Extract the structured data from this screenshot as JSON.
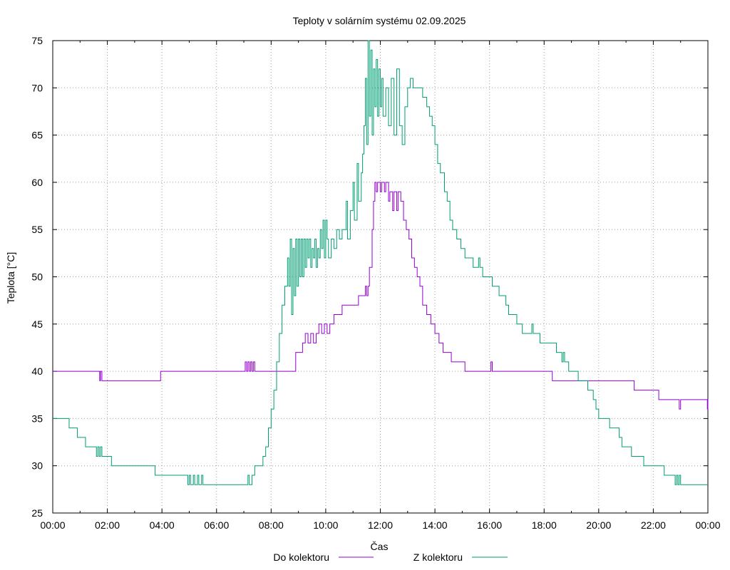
{
  "chart_data": {
    "type": "line",
    "title": "Teploty v solárním systému 02.09.2025",
    "xlabel": "Čas",
    "ylabel": "Teplota [°C]",
    "xlim": [
      0,
      24
    ],
    "ylim": [
      25,
      75
    ],
    "grid": true,
    "legend_position": "bottom",
    "x_ticks": [
      {
        "value": 0,
        "label": "00:00"
      },
      {
        "value": 2,
        "label": "02:00"
      },
      {
        "value": 4,
        "label": "04:00"
      },
      {
        "value": 6,
        "label": "06:00"
      },
      {
        "value": 8,
        "label": "08:00"
      },
      {
        "value": 10,
        "label": "10:00"
      },
      {
        "value": 12,
        "label": "12:00"
      },
      {
        "value": 14,
        "label": "14:00"
      },
      {
        "value": 16,
        "label": "16:00"
      },
      {
        "value": 18,
        "label": "18:00"
      },
      {
        "value": 20,
        "label": "20:00"
      },
      {
        "value": 22,
        "label": "22:00"
      },
      {
        "value": 24,
        "label": "00:00"
      }
    ],
    "y_ticks": [
      {
        "value": 25,
        "label": "25"
      },
      {
        "value": 30,
        "label": "30"
      },
      {
        "value": 35,
        "label": "35"
      },
      {
        "value": 40,
        "label": "40"
      },
      {
        "value": 45,
        "label": "45"
      },
      {
        "value": 50,
        "label": "50"
      },
      {
        "value": 55,
        "label": "55"
      },
      {
        "value": 60,
        "label": "60"
      },
      {
        "value": 65,
        "label": "65"
      },
      {
        "value": 70,
        "label": "70"
      },
      {
        "value": 75,
        "label": "75"
      }
    ],
    "series": [
      {
        "name": "Do kolektoru",
        "color": "#9400d3",
        "points": [
          [
            0.0,
            40
          ],
          [
            1.7,
            40
          ],
          [
            1.72,
            39
          ],
          [
            1.75,
            40
          ],
          [
            1.8,
            39
          ],
          [
            3.9,
            39
          ],
          [
            3.95,
            40
          ],
          [
            7.0,
            40
          ],
          [
            7.05,
            41
          ],
          [
            7.1,
            40
          ],
          [
            7.15,
            41
          ],
          [
            7.2,
            40
          ],
          [
            7.25,
            41
          ],
          [
            7.3,
            40
          ],
          [
            7.35,
            41
          ],
          [
            7.4,
            40
          ],
          [
            8.8,
            40
          ],
          [
            8.9,
            42
          ],
          [
            9.1,
            42
          ],
          [
            9.15,
            43
          ],
          [
            9.25,
            44
          ],
          [
            9.35,
            43
          ],
          [
            9.45,
            44
          ],
          [
            9.55,
            43
          ],
          [
            9.65,
            44
          ],
          [
            9.75,
            45
          ],
          [
            9.85,
            44
          ],
          [
            9.95,
            45
          ],
          [
            10.05,
            44
          ],
          [
            10.15,
            45
          ],
          [
            10.3,
            46
          ],
          [
            10.5,
            46
          ],
          [
            10.6,
            47
          ],
          [
            11.1,
            47
          ],
          [
            11.2,
            48
          ],
          [
            11.4,
            48
          ],
          [
            11.45,
            49
          ],
          [
            11.5,
            48
          ],
          [
            11.55,
            49
          ],
          [
            11.6,
            51
          ],
          [
            11.7,
            55
          ],
          [
            11.75,
            58
          ],
          [
            11.8,
            60
          ],
          [
            11.85,
            59
          ],
          [
            11.9,
            60
          ],
          [
            12.0,
            59
          ],
          [
            12.05,
            60
          ],
          [
            12.15,
            59
          ],
          [
            12.2,
            60
          ],
          [
            12.3,
            58
          ],
          [
            12.35,
            59
          ],
          [
            12.45,
            57
          ],
          [
            12.5,
            59
          ],
          [
            12.6,
            57
          ],
          [
            12.65,
            59
          ],
          [
            12.75,
            58
          ],
          [
            12.85,
            56
          ],
          [
            12.95,
            55
          ],
          [
            13.05,
            54
          ],
          [
            13.15,
            52
          ],
          [
            13.25,
            51
          ],
          [
            13.35,
            50
          ],
          [
            13.45,
            49
          ],
          [
            13.55,
            47
          ],
          [
            13.7,
            46
          ],
          [
            13.85,
            45
          ],
          [
            14.0,
            44
          ],
          [
            14.15,
            43
          ],
          [
            14.3,
            42
          ],
          [
            14.45,
            42
          ],
          [
            14.6,
            41
          ],
          [
            15.0,
            41
          ],
          [
            15.1,
            40
          ],
          [
            16.0,
            40
          ],
          [
            16.05,
            41
          ],
          [
            16.1,
            40
          ],
          [
            18.2,
            40
          ],
          [
            18.3,
            39
          ],
          [
            21.2,
            39
          ],
          [
            21.3,
            38
          ],
          [
            22.1,
            38
          ],
          [
            22.2,
            37
          ],
          [
            22.9,
            37
          ],
          [
            22.95,
            36
          ],
          [
            23.0,
            37
          ],
          [
            23.95,
            37
          ],
          [
            23.98,
            36
          ],
          [
            24.0,
            37
          ]
        ]
      },
      {
        "name": "Z kolektoru",
        "color": "#009e73",
        "points": [
          [
            0.0,
            35
          ],
          [
            0.55,
            35
          ],
          [
            0.6,
            34
          ],
          [
            0.85,
            34
          ],
          [
            0.9,
            33
          ],
          [
            1.15,
            33
          ],
          [
            1.2,
            32
          ],
          [
            1.55,
            32
          ],
          [
            1.6,
            31
          ],
          [
            1.65,
            32
          ],
          [
            1.7,
            31
          ],
          [
            1.75,
            32
          ],
          [
            1.8,
            31
          ],
          [
            2.1,
            31
          ],
          [
            2.15,
            30
          ],
          [
            3.7,
            30
          ],
          [
            3.75,
            29
          ],
          [
            4.9,
            29
          ],
          [
            4.95,
            28
          ],
          [
            5.0,
            29
          ],
          [
            5.05,
            28
          ],
          [
            5.15,
            29
          ],
          [
            5.2,
            28
          ],
          [
            5.3,
            29
          ],
          [
            5.35,
            28
          ],
          [
            5.45,
            29
          ],
          [
            5.5,
            28
          ],
          [
            7.1,
            28
          ],
          [
            7.15,
            29
          ],
          [
            7.2,
            28
          ],
          [
            7.3,
            29
          ],
          [
            7.4,
            30
          ],
          [
            7.7,
            31
          ],
          [
            7.8,
            32
          ],
          [
            7.9,
            34
          ],
          [
            8.0,
            36
          ],
          [
            8.1,
            38
          ],
          [
            8.2,
            41
          ],
          [
            8.3,
            44
          ],
          [
            8.4,
            47
          ],
          [
            8.5,
            49
          ],
          [
            8.6,
            52
          ],
          [
            8.65,
            49
          ],
          [
            8.7,
            54
          ],
          [
            8.75,
            46
          ],
          [
            8.8,
            53
          ],
          [
            8.85,
            48
          ],
          [
            8.9,
            54
          ],
          [
            8.95,
            49
          ],
          [
            9.0,
            54
          ],
          [
            9.05,
            50
          ],
          [
            9.1,
            54
          ],
          [
            9.15,
            50
          ],
          [
            9.2,
            54
          ],
          [
            9.25,
            51
          ],
          [
            9.3,
            54
          ],
          [
            9.35,
            52
          ],
          [
            9.4,
            54
          ],
          [
            9.45,
            51
          ],
          [
            9.5,
            53
          ],
          [
            9.55,
            52
          ],
          [
            9.6,
            54
          ],
          [
            9.65,
            51
          ],
          [
            9.7,
            53
          ],
          [
            9.75,
            52
          ],
          [
            9.8,
            55
          ],
          [
            9.85,
            53
          ],
          [
            9.9,
            56
          ],
          [
            9.95,
            52
          ],
          [
            10.0,
            56
          ],
          [
            10.05,
            54
          ],
          [
            10.1,
            52
          ],
          [
            10.2,
            54
          ],
          [
            10.3,
            53
          ],
          [
            10.4,
            55
          ],
          [
            10.5,
            54
          ],
          [
            10.6,
            55
          ],
          [
            10.75,
            58
          ],
          [
            10.8,
            54
          ],
          [
            10.9,
            57
          ],
          [
            11.0,
            60
          ],
          [
            11.05,
            56
          ],
          [
            11.15,
            62
          ],
          [
            11.2,
            58
          ],
          [
            11.3,
            61
          ],
          [
            11.35,
            63
          ],
          [
            11.4,
            66
          ],
          [
            11.45,
            71
          ],
          [
            11.5,
            64
          ],
          [
            11.55,
            75
          ],
          [
            11.6,
            67
          ],
          [
            11.65,
            74
          ],
          [
            11.7,
            65
          ],
          [
            11.75,
            72
          ],
          [
            11.8,
            68
          ],
          [
            11.85,
            73
          ],
          [
            11.9,
            67
          ],
          [
            11.95,
            72
          ],
          [
            12.0,
            68
          ],
          [
            12.05,
            71
          ],
          [
            12.1,
            67
          ],
          [
            12.2,
            70
          ],
          [
            12.3,
            66
          ],
          [
            12.4,
            71
          ],
          [
            12.5,
            65
          ],
          [
            12.6,
            72
          ],
          [
            12.7,
            66
          ],
          [
            12.8,
            64
          ],
          [
            12.9,
            68
          ],
          [
            13.0,
            70
          ],
          [
            13.1,
            71
          ],
          [
            13.2,
            70
          ],
          [
            13.5,
            70
          ],
          [
            13.55,
            69
          ],
          [
            13.7,
            68
          ],
          [
            13.8,
            67
          ],
          [
            13.9,
            66
          ],
          [
            14.0,
            64
          ],
          [
            14.1,
            62
          ],
          [
            14.2,
            61
          ],
          [
            14.35,
            59
          ],
          [
            14.45,
            58
          ],
          [
            14.55,
            56
          ],
          [
            14.65,
            55
          ],
          [
            14.8,
            54
          ],
          [
            14.95,
            53
          ],
          [
            15.1,
            52
          ],
          [
            15.3,
            52
          ],
          [
            15.4,
            51
          ],
          [
            15.55,
            51
          ],
          [
            15.6,
            52
          ],
          [
            15.65,
            51
          ],
          [
            15.75,
            50
          ],
          [
            16.05,
            50
          ],
          [
            16.1,
            49
          ],
          [
            16.3,
            49
          ],
          [
            16.35,
            48
          ],
          [
            16.6,
            47
          ],
          [
            16.7,
            46
          ],
          [
            16.9,
            46
          ],
          [
            17.0,
            45
          ],
          [
            17.2,
            44
          ],
          [
            17.5,
            44
          ],
          [
            17.55,
            45
          ],
          [
            17.6,
            44
          ],
          [
            17.8,
            44
          ],
          [
            17.85,
            43
          ],
          [
            18.4,
            43
          ],
          [
            18.45,
            42
          ],
          [
            18.6,
            42
          ],
          [
            18.65,
            41
          ],
          [
            18.7,
            42
          ],
          [
            18.75,
            41
          ],
          [
            18.85,
            41
          ],
          [
            18.9,
            40
          ],
          [
            19.2,
            40
          ],
          [
            19.25,
            39
          ],
          [
            19.55,
            39
          ],
          [
            19.6,
            38
          ],
          [
            19.8,
            37
          ],
          [
            19.9,
            36
          ],
          [
            20.0,
            35
          ],
          [
            20.35,
            35
          ],
          [
            20.4,
            34
          ],
          [
            20.7,
            34
          ],
          [
            20.75,
            33
          ],
          [
            20.85,
            32
          ],
          [
            21.15,
            32
          ],
          [
            21.2,
            31
          ],
          [
            21.6,
            31
          ],
          [
            21.65,
            30
          ],
          [
            22.35,
            30
          ],
          [
            22.4,
            29
          ],
          [
            22.75,
            29
          ],
          [
            22.8,
            28
          ],
          [
            22.85,
            29
          ],
          [
            22.9,
            28
          ],
          [
            22.95,
            29
          ],
          [
            23.0,
            28
          ],
          [
            24.0,
            28
          ]
        ]
      }
    ]
  }
}
